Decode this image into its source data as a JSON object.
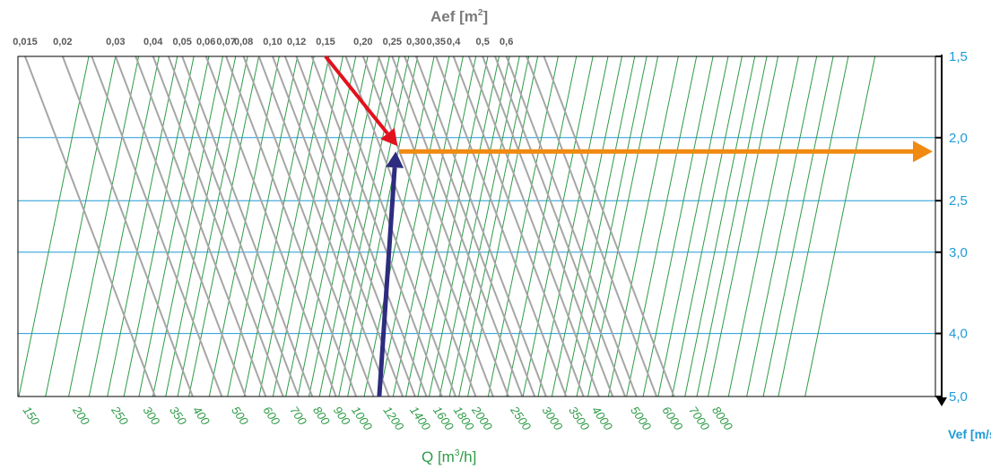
{
  "chart_data": {
    "type": "nomogram",
    "top_axis": {
      "label_main": "Aef [m",
      "label_sup": "2",
      "label_end": "]",
      "ticks": [
        "0,015",
        "0,02",
        "0,03",
        "0,04",
        "0,05",
        "0,06",
        "0,07",
        "0,08",
        "0,10",
        "0,12",
        "0,15",
        "0,20",
        "0,25",
        "0,30",
        "0,35",
        "0,4",
        "0,5",
        "0,6"
      ]
    },
    "right_axis": {
      "label": "Vef [m/s]",
      "ticks": [
        "1,5",
        "2,0",
        "2,5",
        "3,0",
        "4,0",
        "5,0"
      ],
      "values": [
        1.5,
        2.0,
        2.5,
        3.0,
        4.0,
        5.0
      ]
    },
    "bottom_axis": {
      "label_main": "Q [m",
      "label_sup": "3",
      "label_end": "/h]",
      "ticks": [
        "150",
        "200",
        "250",
        "300",
        "350",
        "400",
        "500",
        "600",
        "700",
        "800",
        "900",
        "1000",
        "1200",
        "1400",
        "1600",
        "1800",
        "2000",
        "2500",
        "3000",
        "3500",
        "4000",
        "5000",
        "6000",
        "7000",
        "8000"
      ]
    },
    "example": {
      "Q": 1200,
      "Aef": 0.15,
      "Vef": 2.1
    },
    "colors": {
      "area_lines": "#a6a6a6",
      "flow_lines": "#2e9b47",
      "velocity_lines": "#1f9bd7",
      "arrow_area": "#e3111d",
      "arrow_flow": "#2e2c7e",
      "arrow_result": "#f08a12",
      "frame": "#000000"
    }
  }
}
